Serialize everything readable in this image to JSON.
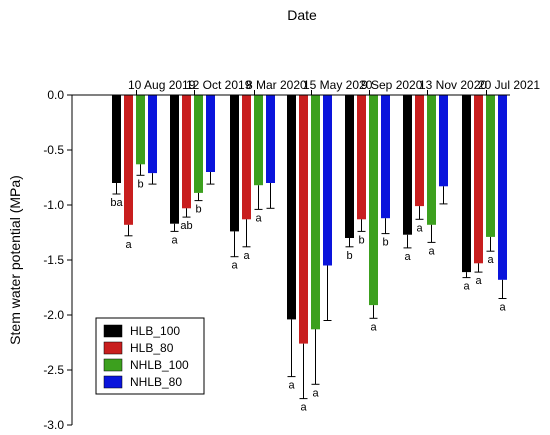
{
  "chart_data": {
    "type": "bar",
    "xlabel": "Date",
    "ylabel": "Stem water potential (MPa)",
    "ylim": [
      -3.0,
      0.0
    ],
    "yticks": [
      "0.0",
      "-0.5",
      "-1.0",
      "-1.5",
      "-2.0",
      "-2.5",
      "-3.0"
    ],
    "ytick_values": [
      0.0,
      -0.5,
      -1.0,
      -1.5,
      -2.0,
      -2.5,
      -3.0
    ],
    "categories": [
      "10 Aug 2019",
      "12 Oct 2019",
      "8 Mar 2020",
      "15 May 2020",
      "9 Sep 2020",
      "13 Nov 2020",
      "20 Jul 2021"
    ],
    "legend_position": "bottom-left",
    "series": [
      {
        "name": "HLB_100",
        "color": "#000000",
        "values": [
          -0.8,
          -1.17,
          -1.24,
          -2.04,
          -1.3,
          -1.27,
          -1.61
        ],
        "errors": [
          0.1,
          0.07,
          0.23,
          0.52,
          0.08,
          0.12,
          0.05
        ],
        "labels": [
          "ba",
          "a",
          "a",
          "a",
          "b",
          "a",
          "a"
        ]
      },
      {
        "name": "HLB_80",
        "color": "#c81e1e",
        "values": [
          -1.18,
          -1.03,
          -1.13,
          -2.26,
          -1.13,
          -1.01,
          -1.53
        ],
        "errors": [
          0.1,
          0.08,
          0.25,
          0.5,
          0.11,
          0.12,
          0.08
        ],
        "labels": [
          "a",
          "ab",
          "a",
          "a",
          "b",
          "a",
          "a"
        ]
      },
      {
        "name": "NHLB_100",
        "color": "#3ca01e",
        "values": [
          -0.63,
          -0.89,
          -0.82,
          -2.13,
          -1.91,
          -1.18,
          -1.29
        ],
        "errors": [
          0.1,
          0.07,
          0.22,
          0.5,
          0.12,
          0.16,
          0.13
        ],
        "labels": [
          "b",
          "b",
          "a",
          "a",
          "a",
          "a",
          "a"
        ]
      },
      {
        "name": "NHLB_80",
        "color": "#0a14dc",
        "values": [
          -0.71,
          -0.7,
          -0.8,
          -1.55,
          -1.12,
          -0.83,
          -1.68
        ],
        "errors": [
          0.1,
          0.11,
          0.23,
          0.5,
          0.14,
          0.16,
          0.17
        ],
        "labels": [
          "",
          "",
          "",
          "",
          "b",
          "",
          "a"
        ]
      }
    ]
  }
}
